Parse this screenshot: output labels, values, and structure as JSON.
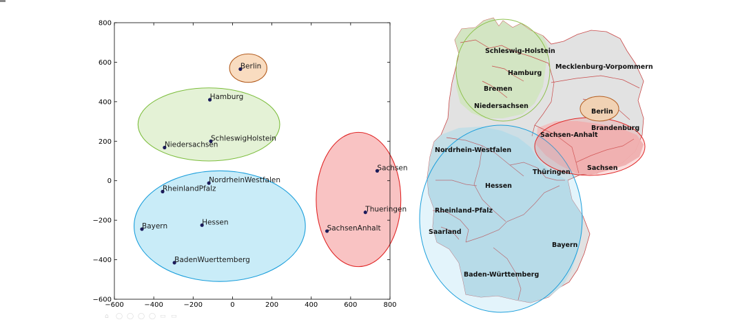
{
  "chart_data": {
    "type": "scatter",
    "xlim": [
      -600,
      800
    ],
    "ylim": [
      -600,
      800
    ],
    "x_ticks": [
      -600,
      -400,
      -200,
      0,
      200,
      400,
      600,
      800
    ],
    "y_ticks": [
      -600,
      -400,
      -200,
      0,
      200,
      400,
      600,
      800
    ],
    "x_tick_labels": [
      "−600",
      "−400",
      "−200",
      "0",
      "200",
      "400",
      "600",
      "800"
    ],
    "y_tick_labels": [
      "−600",
      "−400",
      "−200",
      "0",
      "200",
      "400",
      "600",
      "800"
    ],
    "grid": false,
    "points": [
      {
        "label": "Berlin",
        "x": 40,
        "y": 565
      },
      {
        "label": "Hamburg",
        "x": -115,
        "y": 410
      },
      {
        "label": "SchleswigHolstein",
        "x": -110,
        "y": 200
      },
      {
        "label": "Niedersachsen",
        "x": -345,
        "y": 168
      },
      {
        "label": "NordrheinWestfalen",
        "x": -120,
        "y": -12
      },
      {
        "label": "RheinlandPfalz",
        "x": -355,
        "y": -55
      },
      {
        "label": "Bayern",
        "x": -460,
        "y": -245
      },
      {
        "label": "Hessen",
        "x": -155,
        "y": -225
      },
      {
        "label": "BadenWuerttemberg",
        "x": -295,
        "y": -415
      },
      {
        "label": "Sachsen",
        "x": 735,
        "y": 50
      },
      {
        "label": "Thueringen",
        "x": 675,
        "y": -160
      },
      {
        "label": "SachsenAnhalt",
        "x": 480,
        "y": -255
      }
    ],
    "clusters": [
      {
        "color": "#b35c1e",
        "fill": "#f9dcc0",
        "cx": 80,
        "cy": 570,
        "rx": 95,
        "ry": 72
      },
      {
        "color": "#7cbd3c",
        "fill": "#e4f2d6",
        "cx": -120,
        "cy": 285,
        "rx": 360,
        "ry": 185
      },
      {
        "color": "#1a9edb",
        "fill": "#c9ecf8",
        "cx": -65,
        "cy": -230,
        "rx": 435,
        "ry": 280
      },
      {
        "color": "#e02626",
        "fill": "#f9c3c3",
        "cx": 640,
        "cy": -95,
        "rx": 215,
        "ry": 340
      }
    ],
    "point_color": "#1c1c5c"
  },
  "map": {
    "state_labels": [
      "Schleswig-Holstein",
      "Hamburg",
      "Mecklenburg-Vorpommern",
      "Bremen",
      "Niedersachsen",
      "Berlin",
      "Brandenburg",
      "Sachsen-Anhalt",
      "Nordrhein-Westfalen",
      "Sachsen",
      "Thüringen",
      "Hessen",
      "Rheinland-Pfalz",
      "Saarland",
      "Bayern",
      "Baden-Württemberg"
    ],
    "colors": {
      "land": "#e2e2e2",
      "border": "#c84848",
      "north_fill": "#d2e6c0",
      "north_stroke": "#8cc04a",
      "west_south_fill": "#c2dde6",
      "west_south_stroke": "#1a9edb",
      "east_fill": "#f0c0c0",
      "east_stroke": "#e02626",
      "berlin_fill": "#f1d2b4",
      "berlin_stroke": "#b35c1e"
    }
  }
}
